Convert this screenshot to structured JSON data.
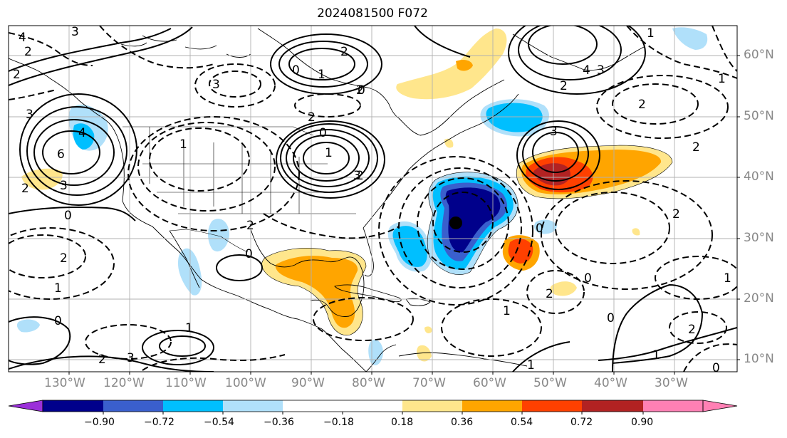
{
  "title": "2024081500 F072",
  "lon_labels": [
    "130°W",
    "120°W",
    "110°W",
    "100°W",
    "90°W",
    "80°W",
    "70°W",
    "60°W",
    "50°W",
    "40°W",
    "30°W"
  ],
  "lat_labels": [
    "60°N",
    "50°N",
    "40°N",
    "30°N",
    "20°N",
    "10°N"
  ],
  "colorbar": {
    "ticks": [
      "−0.90",
      "−0.72",
      "−0.54",
      "−0.36",
      "−0.18",
      "0.18",
      "0.36",
      "0.54",
      "0.72",
      "0.90"
    ],
    "colors": [
      "#9b30d9",
      "#00008b",
      "#3a5fcd",
      "#00bfff",
      "#b0e0fa",
      "#ffffff",
      "#ffe68c",
      "#ffa500",
      "#ff4000",
      "#b22222",
      "#ff80b4"
    ]
  },
  "map": {
    "contour_labels": [
      "4",
      "3",
      "2",
      "2",
      "3",
      "4",
      "6",
      "3",
      "2",
      "0",
      "2",
      "1",
      "0",
      "2",
      "3",
      "3",
      "2",
      "1",
      "0",
      "2",
      "2",
      "0",
      "1",
      "2",
      "0",
      "1",
      "3",
      "4",
      "2",
      "3",
      "2",
      "1",
      "0",
      "2",
      "2",
      "1",
      "1",
      "2",
      "0",
      "0",
      "2",
      "0",
      "1",
      "1",
      "1",
      "2",
      "0",
      "1",
      "3"
    ],
    "marker": "storm-center-dot"
  }
}
